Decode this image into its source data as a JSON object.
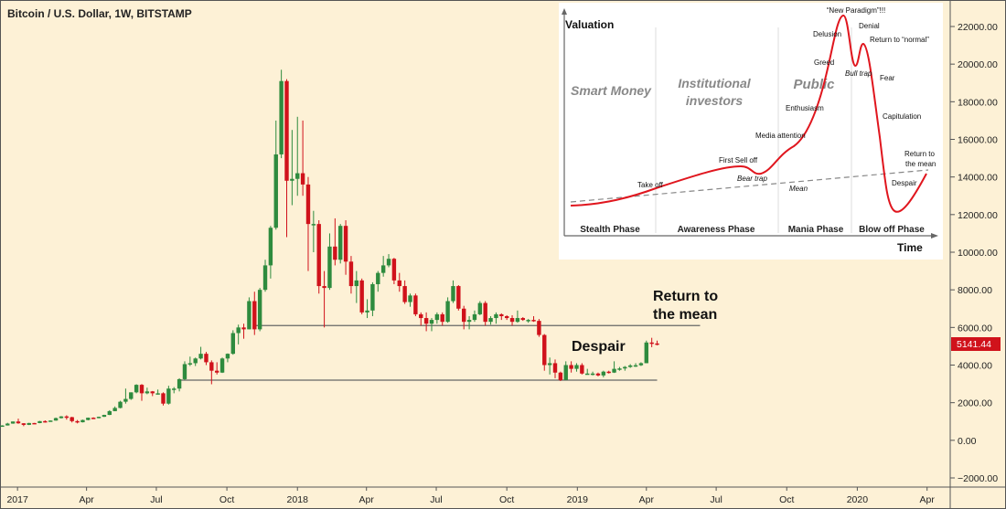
{
  "chart_data": {
    "type": "candlestick",
    "title": "Bitcoin / U.S. Dollar, 1W, BITSTAMP",
    "y_ticks": [
      22000,
      20000,
      18000,
      16000,
      14000,
      12000,
      10000,
      8000,
      6000,
      4000,
      2000,
      0,
      -2000
    ],
    "y_tick_labels": [
      "22000.00",
      "20000.00",
      "18000.00",
      "16000.00",
      "14000.00",
      "12000.00",
      "10000.00",
      "8000.00",
      "6000.00",
      "4000.00",
      "2000.00",
      "0.00",
      "−2000.00"
    ],
    "ylim": [
      -2000,
      22000
    ],
    "x_ticks": [
      {
        "label": "2017",
        "date": "2017-01-01"
      },
      {
        "label": "Apr",
        "date": "2017-04-01"
      },
      {
        "label": "Jul",
        "date": "2017-07-01"
      },
      {
        "label": "Oct",
        "date": "2017-10-01"
      },
      {
        "label": "2018",
        "date": "2018-01-01"
      },
      {
        "label": "Apr",
        "date": "2018-04-01"
      },
      {
        "label": "Jul",
        "date": "2018-07-01"
      },
      {
        "label": "Oct",
        "date": "2018-10-01"
      },
      {
        "label": "2019",
        "date": "2019-01-01"
      },
      {
        "label": "Apr",
        "date": "2019-04-01"
      },
      {
        "label": "Jul",
        "date": "2019-07-01"
      },
      {
        "label": "Oct",
        "date": "2019-10-01"
      },
      {
        "label": "2020",
        "date": "2020-01-01"
      },
      {
        "label": "Apr",
        "date": "2020-04-01"
      }
    ],
    "last_price": "5141.44",
    "colors": {
      "up": "#2e8b3e",
      "down": "#d0121b",
      "background": "#fdf1d6",
      "price_label": "#d0121b"
    },
    "horizontal_lines": [
      {
        "value": 6100,
        "from": "2017-11-06",
        "to": "2019-06-10"
      },
      {
        "value": 3200,
        "from": "2017-07-31",
        "to": "2019-04-15"
      }
    ],
    "annotations": [
      {
        "text": "Return to",
        "line2": "the mean"
      },
      {
        "text": "Despair"
      }
    ],
    "candles": [
      [
        "2016-12-12",
        775,
        800,
        760,
        790
      ],
      [
        "2016-12-19",
        790,
        930,
        785,
        890
      ],
      [
        "2016-12-26",
        890,
        1000,
        880,
        1000
      ],
      [
        "2017-01-02",
        1000,
        1150,
        880,
        905
      ],
      [
        "2017-01-09",
        905,
        910,
        750,
        820
      ],
      [
        "2017-01-16",
        820,
        930,
        810,
        920
      ],
      [
        "2017-01-23",
        920,
        925,
        880,
        915
      ],
      [
        "2017-01-30",
        915,
        1030,
        910,
        1020
      ],
      [
        "2017-02-06",
        1020,
        1060,
        940,
        1000
      ],
      [
        "2017-02-13",
        1000,
        1060,
        990,
        1050
      ],
      [
        "2017-02-20",
        1050,
        1210,
        1040,
        1180
      ],
      [
        "2017-02-27",
        1180,
        1290,
        1160,
        1270
      ],
      [
        "2017-03-06",
        1270,
        1330,
        1100,
        1230
      ],
      [
        "2017-03-13",
        1230,
        1250,
        950,
        1020
      ],
      [
        "2017-03-20",
        1020,
        1080,
        900,
        960
      ],
      [
        "2017-03-27",
        960,
        1100,
        950,
        1080
      ],
      [
        "2017-04-03",
        1080,
        1210,
        1060,
        1200
      ],
      [
        "2017-04-10",
        1200,
        1220,
        1150,
        1180
      ],
      [
        "2017-04-17",
        1180,
        1260,
        1170,
        1250
      ],
      [
        "2017-04-24",
        1250,
        1360,
        1240,
        1350
      ],
      [
        "2017-05-01",
        1350,
        1600,
        1340,
        1550
      ],
      [
        "2017-05-08",
        1550,
        1800,
        1550,
        1720
      ],
      [
        "2017-05-15",
        1720,
        2100,
        1700,
        2050
      ],
      [
        "2017-05-22",
        2050,
        2750,
        1950,
        2200
      ],
      [
        "2017-05-29",
        2200,
        2550,
        2150,
        2550
      ],
      [
        "2017-06-05",
        2550,
        2980,
        2500,
        2950
      ],
      [
        "2017-06-12",
        2950,
        2990,
        2100,
        2500
      ],
      [
        "2017-06-19",
        2500,
        2800,
        2450,
        2600
      ],
      [
        "2017-06-26",
        2600,
        2620,
        2350,
        2500
      ],
      [
        "2017-07-03",
        2500,
        2700,
        2450,
        2500
      ],
      [
        "2017-07-10",
        2500,
        2550,
        1850,
        1950
      ],
      [
        "2017-07-17",
        1950,
        2900,
        1900,
        2750
      ],
      [
        "2017-07-24",
        2750,
        2830,
        2500,
        2750
      ],
      [
        "2017-07-31",
        2750,
        3300,
        2600,
        3250
      ],
      [
        "2017-08-07",
        3250,
        4200,
        3200,
        4050
      ],
      [
        "2017-08-14",
        4050,
        4450,
        3950,
        4100
      ],
      [
        "2017-08-21",
        4100,
        4400,
        3950,
        4350
      ],
      [
        "2017-08-28",
        4350,
        4970,
        4300,
        4600
      ],
      [
        "2017-09-04",
        4600,
        4700,
        4000,
        4150
      ],
      [
        "2017-09-11",
        4150,
        4250,
        2980,
        3700
      ],
      [
        "2017-09-18",
        3700,
        4150,
        3500,
        3600
      ],
      [
        "2017-09-25",
        3600,
        4400,
        3580,
        4350
      ],
      [
        "2017-10-02",
        4350,
        4620,
        4150,
        4600
      ],
      [
        "2017-10-09",
        4600,
        5850,
        4550,
        5700
      ],
      [
        "2017-10-16",
        5700,
        6150,
        5100,
        6000
      ],
      [
        "2017-10-23",
        6000,
        6200,
        5400,
        5900
      ],
      [
        "2017-10-30",
        5900,
        7600,
        5900,
        7400
      ],
      [
        "2017-11-06",
        7400,
        7900,
        5600,
        5900
      ],
      [
        "2017-11-13",
        5900,
        8100,
        5800,
        8000
      ],
      [
        "2017-11-20",
        8000,
        9600,
        7900,
        9300
      ],
      [
        "2017-11-27",
        9300,
        11400,
        8600,
        11300
      ],
      [
        "2017-12-04",
        11300,
        17000,
        11200,
        15200
      ],
      [
        "2017-12-11",
        15200,
        19700,
        15000,
        19100
      ],
      [
        "2017-12-18",
        19100,
        19200,
        10800,
        13800
      ],
      [
        "2017-12-25",
        13800,
        16500,
        12500,
        13900
      ],
      [
        "2018-01-01",
        13900,
        17200,
        13000,
        14200
      ],
      [
        "2018-01-08",
        14200,
        17000,
        13000,
        13600
      ],
      [
        "2018-01-15",
        13600,
        14000,
        9000,
        11500
      ],
      [
        "2018-01-22",
        11500,
        12200,
        10000,
        11500
      ],
      [
        "2018-01-29",
        11500,
        11700,
        7800,
        8200
      ],
      [
        "2018-02-05",
        8200,
        9000,
        6000,
        8100
      ],
      [
        "2018-02-12",
        8100,
        11000,
        8000,
        10300
      ],
      [
        "2018-02-19",
        10300,
        11800,
        9300,
        9600
      ],
      [
        "2018-02-26",
        9600,
        11500,
        9400,
        11400
      ],
      [
        "2018-03-05",
        11400,
        11700,
        8800,
        9500
      ],
      [
        "2018-03-12",
        9500,
        9800,
        7800,
        8200
      ],
      [
        "2018-03-19",
        8200,
        9000,
        7300,
        8500
      ],
      [
        "2018-03-26",
        8500,
        8600,
        6700,
        6800
      ],
      [
        "2018-04-02",
        6800,
        7500,
        6500,
        6900
      ],
      [
        "2018-04-09",
        6900,
        8400,
        6600,
        8300
      ],
      [
        "2018-04-16",
        8300,
        9000,
        7900,
        8900
      ],
      [
        "2018-04-23",
        8900,
        9800,
        8700,
        9300
      ],
      [
        "2018-04-30",
        9300,
        9900,
        9200,
        9650
      ],
      [
        "2018-05-07",
        9650,
        9700,
        8300,
        8500
      ],
      [
        "2018-05-14",
        8500,
        8900,
        7900,
        8200
      ],
      [
        "2018-05-21",
        8200,
        8500,
        7250,
        7350
      ],
      [
        "2018-05-28",
        7350,
        7800,
        7100,
        7700
      ],
      [
        "2018-06-04",
        7700,
        7800,
        6600,
        6700
      ],
      [
        "2018-06-11",
        6700,
        6800,
        6100,
        6500
      ],
      [
        "2018-06-18",
        6500,
        6800,
        5800,
        6200
      ],
      [
        "2018-06-25",
        6200,
        6500,
        5800,
        6400
      ],
      [
        "2018-07-02",
        6400,
        6800,
        6200,
        6700
      ],
      [
        "2018-07-09",
        6700,
        6800,
        6100,
        6300
      ],
      [
        "2018-07-16",
        6300,
        7600,
        6250,
        7400
      ],
      [
        "2018-07-23",
        7400,
        8500,
        7300,
        8200
      ],
      [
        "2018-07-30",
        8200,
        8250,
        6900,
        7000
      ],
      [
        "2018-08-06",
        7000,
        7150,
        5900,
        6300
      ],
      [
        "2018-08-13",
        6300,
        6600,
        5900,
        6400
      ],
      [
        "2018-08-20",
        6400,
        6900,
        6300,
        6700
      ],
      [
        "2018-08-27",
        6700,
        7400,
        6650,
        7300
      ],
      [
        "2018-09-03",
        7300,
        7400,
        6100,
        6300
      ],
      [
        "2018-09-10",
        6300,
        6600,
        6150,
        6500
      ],
      [
        "2018-09-17",
        6500,
        6800,
        6200,
        6700
      ],
      [
        "2018-09-24",
        6700,
        6750,
        6400,
        6600
      ],
      [
        "2018-10-01",
        6600,
        6650,
        6400,
        6500
      ],
      [
        "2018-10-08",
        6500,
        6650,
        6100,
        6300
      ],
      [
        "2018-10-15",
        6300,
        6900,
        6250,
        6500
      ],
      [
        "2018-10-22",
        6500,
        6550,
        6350,
        6400
      ],
      [
        "2018-10-29",
        6400,
        6450,
        6250,
        6400
      ],
      [
        "2018-11-05",
        6400,
        6600,
        6300,
        6350
      ],
      [
        "2018-11-12",
        6350,
        6450,
        5500,
        5600
      ],
      [
        "2018-11-19",
        5600,
        5650,
        3700,
        4000
      ],
      [
        "2018-11-26",
        4000,
        4400,
        3500,
        4100
      ],
      [
        "2018-12-03",
        4100,
        4300,
        3300,
        3600
      ],
      [
        "2018-12-10",
        3600,
        3650,
        3150,
        3200
      ],
      [
        "2018-12-17",
        3200,
        4200,
        3200,
        4000
      ],
      [
        "2018-12-24",
        4000,
        4200,
        3600,
        3800
      ],
      [
        "2018-12-31",
        3800,
        4100,
        3650,
        4000
      ],
      [
        "2019-01-07",
        4000,
        4100,
        3500,
        3550
      ],
      [
        "2019-01-14",
        3550,
        3800,
        3500,
        3550
      ],
      [
        "2019-01-21",
        3550,
        3650,
        3450,
        3550
      ],
      [
        "2019-01-28",
        3550,
        3600,
        3400,
        3450
      ],
      [
        "2019-02-04",
        3450,
        3700,
        3350,
        3650
      ],
      [
        "2019-02-11",
        3650,
        3700,
        3550,
        3600
      ],
      [
        "2019-02-18",
        3600,
        4200,
        3580,
        3800
      ],
      [
        "2019-02-25",
        3800,
        3900,
        3700,
        3820
      ],
      [
        "2019-03-04",
        3820,
        3950,
        3700,
        3900
      ],
      [
        "2019-03-11",
        3900,
        4050,
        3850,
        3980
      ],
      [
        "2019-03-18",
        3980,
        4100,
        3900,
        3990
      ],
      [
        "2019-03-25",
        3990,
        4150,
        3950,
        4100
      ],
      [
        "2019-04-01",
        4100,
        5300,
        4100,
        5200
      ],
      [
        "2019-04-08",
        5200,
        5450,
        4950,
        5150
      ],
      [
        "2019-04-15",
        5150,
        5300,
        5050,
        5141.44
      ]
    ]
  },
  "inset": {
    "y_axis_label": "Valuation",
    "x_axis_label": "Time",
    "phases": [
      "Stealth Phase",
      "Awareness Phase",
      "Mania Phase",
      "Blow off Phase"
    ],
    "groups": {
      "smart_money": "Smart Money",
      "institutional_1": "Institutional",
      "institutional_2": "investors",
      "public": "Public"
    },
    "labels": {
      "new_paradigm": "“New Paradigm”!!!",
      "denial": "Denial",
      "delusion": "Delusion",
      "return_normal": "Return to “normal”",
      "greed": "Greed",
      "bull_trap": "Bull trap",
      "fear": "Fear",
      "enthusiasm": "Enthusiasm",
      "capitulation": "Capitulation",
      "media_attention": "Media attention",
      "first_sell_off": "First Sell off",
      "return_mean_1": "Return to",
      "return_mean_2": "the mean",
      "bear_trap": "Bear trap",
      "take_off": "Take off",
      "mean": "Mean",
      "despair": "Despair"
    },
    "colors": {
      "curve": "#e0161e",
      "mean": "#888888"
    }
  }
}
